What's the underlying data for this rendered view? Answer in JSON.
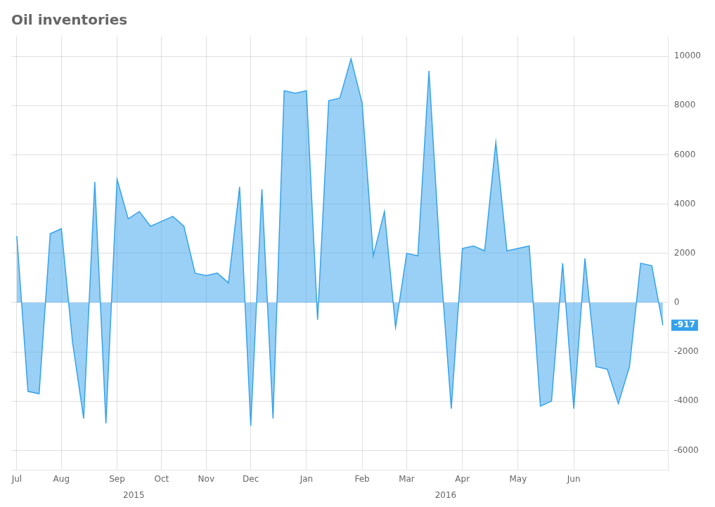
{
  "chart_data": {
    "type": "area",
    "title": "Oil inventories",
    "categories": [
      "Jul",
      null,
      null,
      null,
      "Aug",
      null,
      null,
      null,
      null,
      "Sep",
      null,
      null,
      null,
      "Oct",
      null,
      null,
      null,
      "Nov",
      null,
      null,
      null,
      "Dec",
      null,
      null,
      null,
      null,
      "Jan",
      null,
      null,
      null,
      null,
      "Feb",
      null,
      null,
      null,
      "Mar",
      null,
      null,
      null,
      null,
      "Apr",
      null,
      null,
      null,
      null,
      "May",
      null,
      null,
      null,
      null,
      "Jun",
      null,
      null,
      null,
      null,
      null,
      null,
      null,
      null
    ],
    "values": [
      2700,
      -3600,
      -3700,
      2800,
      3000,
      -1600,
      -4700,
      4900,
      -4900,
      5000,
      3400,
      3700,
      3100,
      3300,
      3500,
      3100,
      1200,
      1100,
      1200,
      800,
      4700,
      -5000,
      4600,
      -4700,
      8600,
      8500,
      8600,
      -700,
      8200,
      8300,
      9900,
      8100,
      1900,
      3700,
      -1000,
      2000,
      1900,
      9400,
      1800,
      -4300,
      2200,
      2300,
      2100,
      6500,
      2100,
      2200,
      2300,
      -4200,
      -4000,
      1600,
      -4300,
      1800,
      -2600,
      -2700,
      -4100,
      -2600,
      1600,
      1500,
      -917
    ],
    "ylim": [
      -6800,
      10800
    ],
    "yticks": [
      -6000,
      -4000,
      -2000,
      0,
      2000,
      4000,
      6000,
      8000,
      10000
    ],
    "grid": true,
    "annotations": [
      {
        "text": "2015",
        "x": 10.5
      },
      {
        "text": "2016",
        "x": 38.5
      },
      {
        "text": "-917",
        "x": 58,
        "y": -917
      }
    ]
  }
}
